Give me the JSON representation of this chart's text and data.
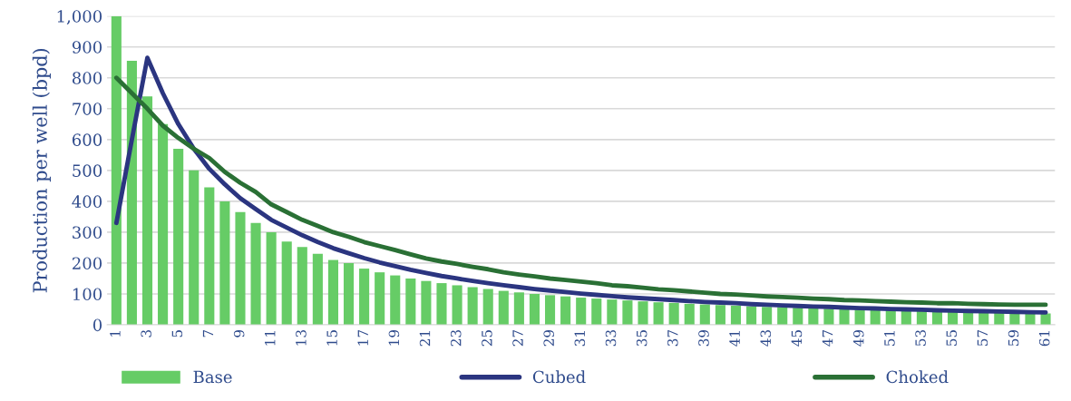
{
  "chart_data": {
    "type": "bar",
    "ylabel": "Production per well (bpd)",
    "categories": [
      "1",
      null,
      "3",
      null,
      "5",
      null,
      "7",
      null,
      "9",
      null,
      "11",
      null,
      "13",
      null,
      "15",
      null,
      "17",
      null,
      "19",
      null,
      "21",
      null,
      "23",
      null,
      "25",
      null,
      "27",
      null,
      "29",
      null,
      "31",
      null,
      "33",
      null,
      "35",
      null,
      "37",
      null,
      "39",
      null,
      "41",
      null,
      "43",
      null,
      "45",
      null,
      "47",
      null,
      "49",
      null,
      "51",
      null,
      "53",
      null,
      "55",
      null,
      "57",
      null,
      "59",
      null,
      "61"
    ],
    "series": [
      {
        "name": "Base",
        "color": "#66cc66",
        "values": [
          1000,
          855,
          740,
          650,
          570,
          500,
          445,
          400,
          365,
          330,
          300,
          270,
          252,
          230,
          210,
          200,
          182,
          170,
          160,
          150,
          142,
          135,
          128,
          122,
          116,
          110,
          105,
          100,
          96,
          92,
          88,
          85,
          82,
          79,
          76,
          73,
          71,
          68,
          66,
          64,
          62,
          60,
          58,
          57,
          55,
          54,
          52,
          51,
          49,
          48,
          47,
          46,
          45,
          44,
          43,
          42,
          41,
          40,
          39,
          38,
          37
        ]
      },
      {
        "name": "Cubed",
        "type": "line",
        "color": "#2b3580",
        "values": [
          330,
          600,
          865,
          750,
          650,
          570,
          505,
          455,
          410,
          375,
          340,
          315,
          290,
          268,
          248,
          232,
          216,
          202,
          190,
          178,
          168,
          158,
          150,
          142,
          135,
          128,
          122,
          116,
          111,
          106,
          101,
          97,
          93,
          89,
          86,
          83,
          80,
          77,
          74,
          72,
          70,
          67,
          65,
          63,
          61,
          59,
          58,
          56,
          54,
          53,
          51,
          50,
          49,
          47,
          46,
          45,
          44,
          43,
          42,
          41,
          40
        ]
      },
      {
        "name": "Choked",
        "type": "line",
        "color": "#2a7035",
        "values": [
          800,
          750,
          700,
          645,
          605,
          570,
          540,
          495,
          460,
          430,
          390,
          365,
          340,
          320,
          300,
          285,
          268,
          255,
          242,
          228,
          215,
          205,
          197,
          188,
          180,
          170,
          163,
          157,
          150,
          145,
          140,
          135,
          128,
          125,
          120,
          115,
          112,
          108,
          104,
          100,
          98,
          95,
          92,
          90,
          88,
          85,
          83,
          80,
          79,
          77,
          75,
          73,
          72,
          70,
          70,
          68,
          67,
          66,
          65,
          65,
          65
        ]
      }
    ],
    "ylim": [
      0,
      1000
    ],
    "yticks": [
      0,
      100,
      200,
      300,
      400,
      500,
      600,
      700,
      800,
      900,
      {
        "value": 1000,
        "label": "1,000"
      }
    ],
    "grid": "y",
    "legend": "bottom",
    "marker": "none",
    "line_style": "solid"
  }
}
